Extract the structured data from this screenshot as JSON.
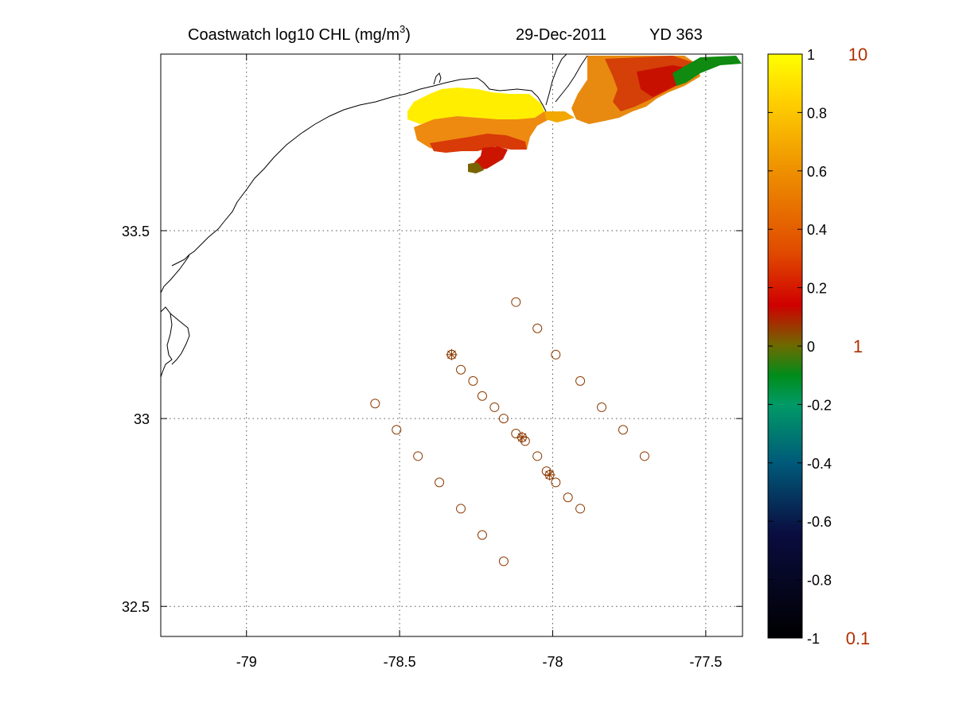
{
  "title": {
    "main": "Coastwatch  log10  CHL (mg/m",
    "superscript": "3",
    "close": ")",
    "date": "29-Dec-2011",
    "yearday": "YD 363"
  },
  "chart_data": {
    "type": "scatter",
    "xlim": [
      -79.28,
      -77.38
    ],
    "ylim": [
      32.42,
      33.97
    ],
    "x_ticks": [
      -79,
      -78.5,
      -78,
      -77.5
    ],
    "x_tick_labels": [
      "-79",
      "-78.5",
      "-78",
      "-77.5"
    ],
    "y_ticks": [
      32.5,
      33,
      33.5
    ],
    "y_tick_labels": [
      "32.5",
      "33",
      "33.5"
    ],
    "grid": true,
    "colorbar": {
      "clim": [
        -1,
        1
      ],
      "ticks": [
        -1,
        -0.8,
        -0.6,
        -0.4,
        -0.2,
        0,
        0.2,
        0.4,
        0.6,
        0.8,
        1
      ],
      "tick_labels": [
        "-1",
        "-0.8",
        "-0.6",
        "-0.4",
        "-0.2",
        "0",
        "0.2",
        "0.4",
        "0.6",
        "0.8",
        "1"
      ],
      "right_labels": [
        {
          "value": 1,
          "label": "10"
        },
        {
          "value": 0,
          "label": "1"
        },
        {
          "value": -1,
          "label": "0.1"
        }
      ],
      "right_label_color": "#b03000"
    },
    "station_color": "#8b3a00",
    "stations": [
      [
        -78.12,
        33.31
      ],
      [
        -78.05,
        33.24
      ],
      [
        -77.99,
        33.17
      ],
      [
        -77.91,
        33.1
      ],
      [
        -77.84,
        33.03
      ],
      [
        -77.77,
        32.97
      ],
      [
        -77.7,
        32.9
      ],
      [
        -78.58,
        33.04
      ],
      [
        -78.51,
        32.97
      ],
      [
        -78.44,
        32.9
      ],
      [
        -78.37,
        32.83
      ],
      [
        -78.3,
        32.76
      ],
      [
        -78.23,
        32.69
      ],
      [
        -78.16,
        32.62
      ],
      [
        -78.33,
        33.17
      ],
      [
        -78.3,
        33.13
      ],
      [
        -78.26,
        33.1
      ],
      [
        -78.23,
        33.06
      ],
      [
        -78.19,
        33.03
      ],
      [
        -78.16,
        33.0
      ],
      [
        -78.12,
        32.96
      ],
      [
        -78.09,
        32.94
      ],
      [
        -78.05,
        32.9
      ],
      [
        -78.02,
        32.86
      ],
      [
        -77.99,
        32.83
      ],
      [
        -77.95,
        32.79
      ],
      [
        -77.91,
        32.76
      ]
    ],
    "cast_stations": [
      [
        -78.33,
        33.17
      ],
      [
        -78.1,
        32.95
      ],
      [
        -78.01,
        32.85
      ]
    ]
  }
}
